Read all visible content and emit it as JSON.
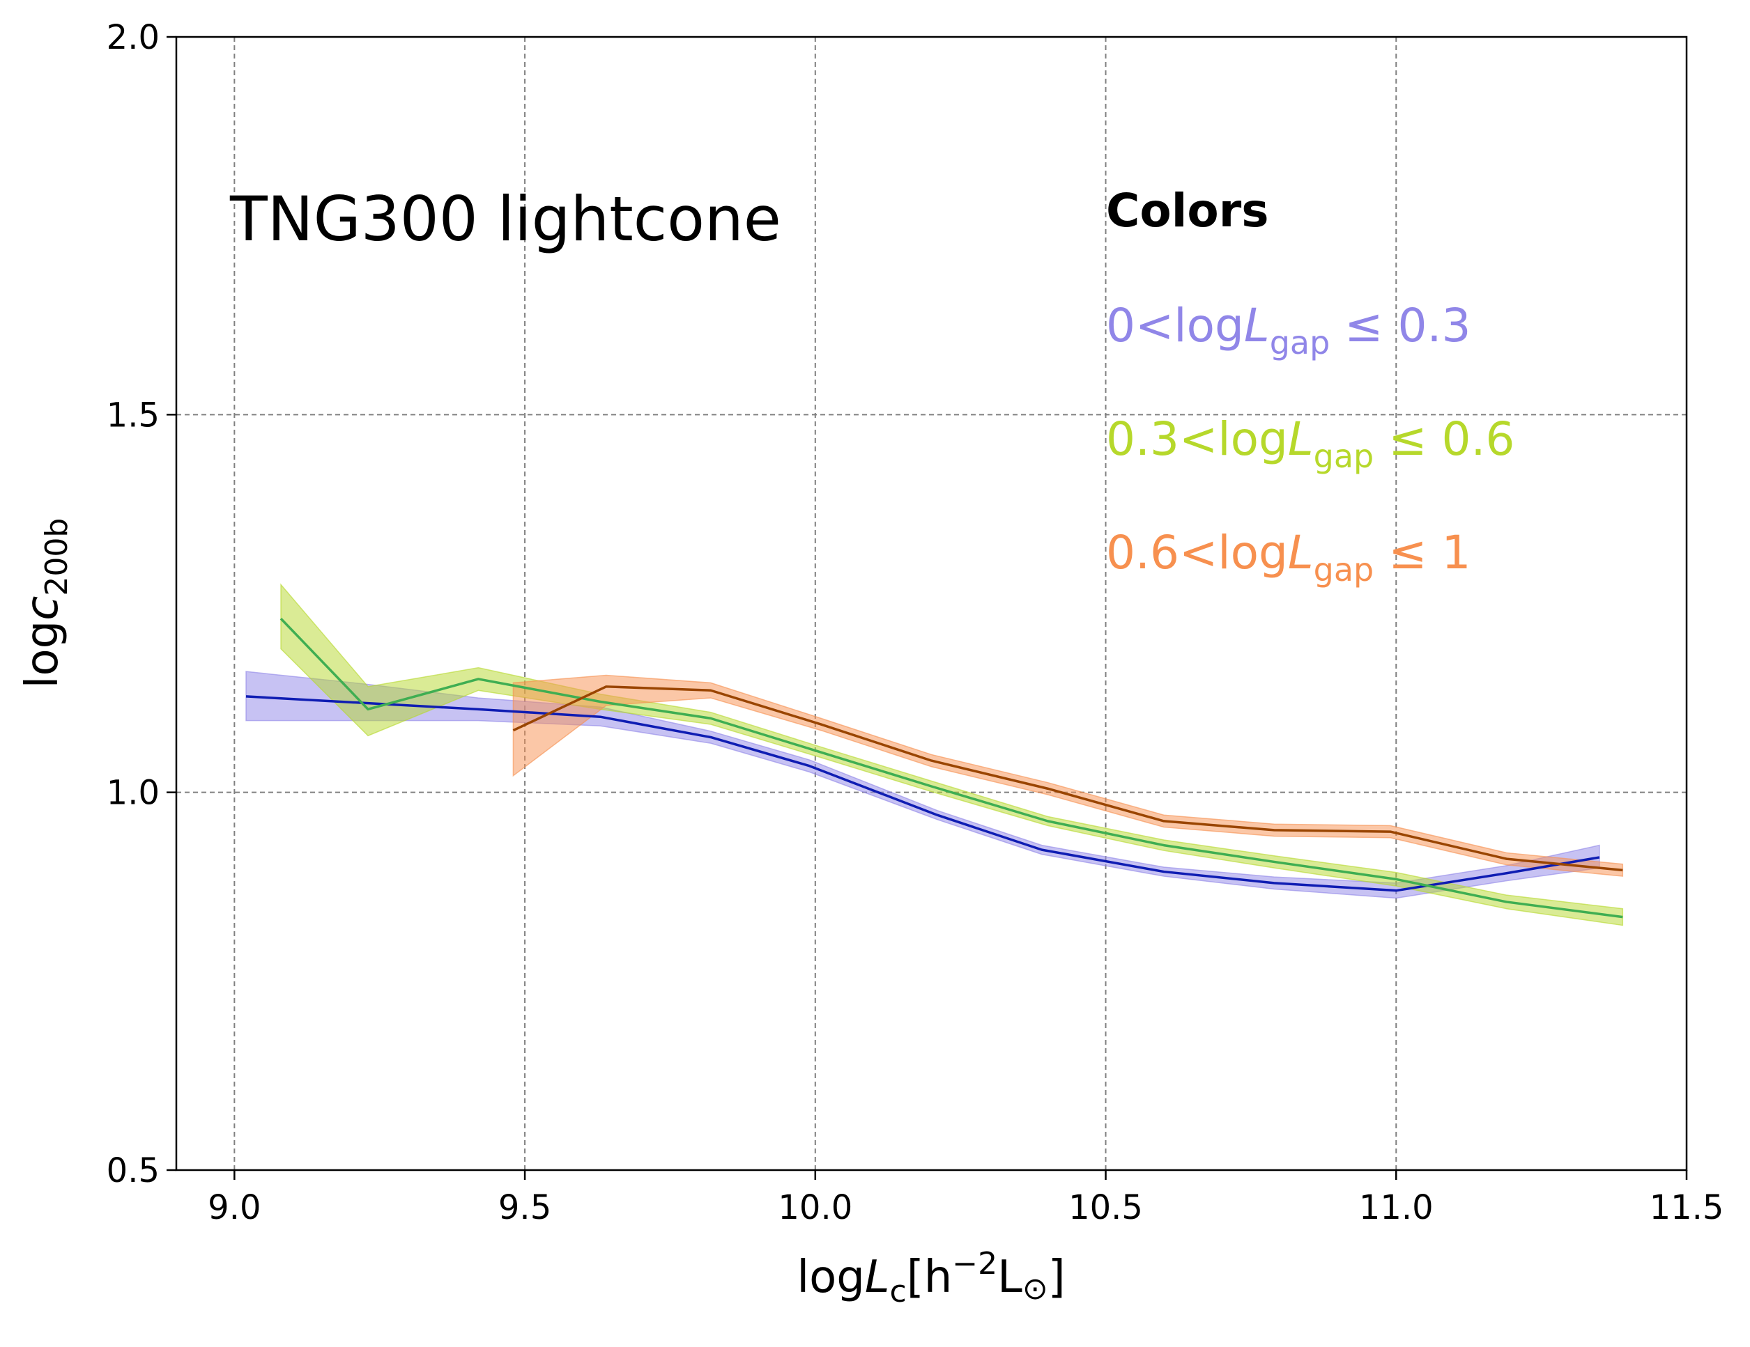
{
  "chart_data": {
    "type": "line",
    "annotation": "TNG300 lightcone",
    "legend": {
      "title": "Colors",
      "placement": "top-right",
      "entries": [
        {
          "prefix": "0<log",
          "var": "L",
          "sub": "gap",
          "suffix": " ≤ 0.3",
          "color": "#9086e8"
        },
        {
          "prefix": "0.3<log",
          "var": "L",
          "sub": "gap",
          "suffix": " ≤ 0.6",
          "color": "#b6d82b"
        },
        {
          "prefix": "0.6<log",
          "var": "L",
          "sub": "gap",
          "suffix": " ≤ 1",
          "color": "#f7904f"
        }
      ]
    },
    "xaxis": {
      "label_prefix": "log",
      "label_var": "L",
      "label_sub": "c",
      "label_rest": "[h",
      "label_sup": "−2",
      "label_unit": "L",
      "label_sun": "⊙",
      "label_close": "]",
      "range": [
        8.9,
        11.5
      ],
      "ticks": [
        "9.0",
        "9.5",
        "10.0",
        "10.5",
        "11.0",
        "11.5"
      ],
      "tick_values": [
        9.0,
        9.5,
        10.0,
        10.5,
        11.0,
        11.5
      ]
    },
    "yaxis": {
      "label_prefix": "log",
      "label_var": "c",
      "label_sub": "200b",
      "range": [
        0.5,
        2.0
      ],
      "ticks": [
        "0.5",
        "1.0",
        "1.5",
        "2.0"
      ],
      "tick_values": [
        0.5,
        1.0,
        1.5,
        2.0
      ]
    },
    "grid": true,
    "series": [
      {
        "line_color": "#0f1db3",
        "band_color": "#9086e8",
        "x": [
          9.02,
          9.23,
          9.42,
          9.63,
          9.82,
          9.99,
          10.21,
          10.39,
          10.6,
          10.79,
          11.0,
          11.19,
          11.35
        ],
        "y": [
          1.127,
          1.118,
          1.11,
          1.1,
          1.073,
          1.035,
          0.97,
          0.924,
          0.895,
          0.88,
          0.87,
          0.893,
          0.914
        ],
        "band_low": [
          1.095,
          1.095,
          1.095,
          1.088,
          1.065,
          1.027,
          0.964,
          0.918,
          0.889,
          0.872,
          0.86,
          0.883,
          0.9
        ],
        "band_high": [
          1.16,
          1.143,
          1.125,
          1.113,
          1.081,
          1.043,
          0.976,
          0.93,
          0.901,
          0.888,
          0.88,
          0.903,
          0.93
        ]
      },
      {
        "line_color": "#3fae52",
        "band_color": "#b6d82b",
        "x": [
          9.08,
          9.23,
          9.42,
          9.63,
          9.82,
          10.01,
          10.2,
          10.4,
          10.6,
          10.79,
          11.0,
          11.19,
          11.39
        ],
        "y": [
          1.23,
          1.11,
          1.15,
          1.12,
          1.098,
          1.053,
          1.008,
          0.962,
          0.93,
          0.908,
          0.885,
          0.855,
          0.835
        ],
        "band_low": [
          1.19,
          1.075,
          1.135,
          1.11,
          1.09,
          1.046,
          1.001,
          0.956,
          0.923,
          0.9,
          0.876,
          0.846,
          0.824
        ],
        "band_high": [
          1.275,
          1.14,
          1.165,
          1.13,
          1.106,
          1.06,
          1.015,
          0.968,
          0.937,
          0.916,
          0.894,
          0.864,
          0.846
        ]
      },
      {
        "line_color": "#9a4500",
        "band_color": "#f7904f",
        "x": [
          9.48,
          9.64,
          9.82,
          10.01,
          10.2,
          10.4,
          10.6,
          10.79,
          10.99,
          11.19,
          11.39
        ],
        "y": [
          1.082,
          1.14,
          1.135,
          1.09,
          1.042,
          1.005,
          0.962,
          0.95,
          0.948,
          0.912,
          0.897
        ],
        "band_low": [
          1.022,
          1.115,
          1.125,
          1.082,
          1.034,
          0.997,
          0.954,
          0.942,
          0.94,
          0.904,
          0.889
        ],
        "band_high": [
          1.145,
          1.155,
          1.145,
          1.098,
          1.05,
          1.013,
          0.97,
          0.958,
          0.956,
          0.92,
          0.905
        ]
      }
    ]
  }
}
